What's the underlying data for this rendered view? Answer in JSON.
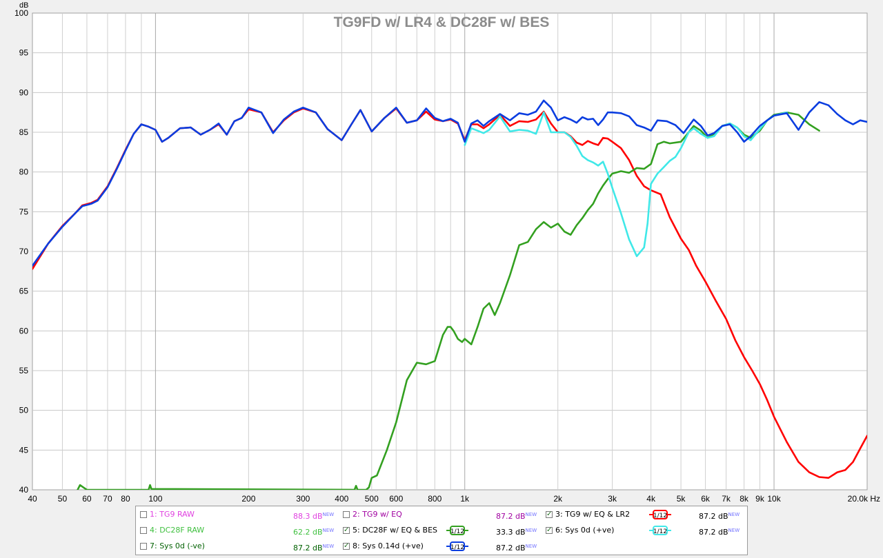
{
  "chart_data": {
    "type": "line",
    "title": "TG9FD w/ LR4 & DC28F w/ BES",
    "ylabel": "dB",
    "xlabel": "Hz",
    "x_scale": "log",
    "xlim": [
      40,
      20000
    ],
    "ylim": [
      40,
      100
    ],
    "grid": true,
    "y_ticks": [
      40,
      45,
      50,
      55,
      60,
      65,
      70,
      75,
      80,
      85,
      90,
      95,
      100
    ],
    "x_tick_labels": [
      "40",
      "50",
      "60",
      "70",
      "80",
      "100",
      "200",
      "300",
      "400",
      "500",
      "600",
      "800",
      "1k",
      "2k",
      "3k",
      "4k",
      "5k",
      "6k",
      "7k",
      "8k",
      "9k",
      "10k",
      "20.0k Hz"
    ],
    "series": [
      {
        "name": "3: TG9 w/ EQ & LR2",
        "color": "#ff0000",
        "x": [
          40,
          45,
          50,
          55,
          58,
          62,
          65,
          70,
          75,
          80,
          85,
          90,
          95,
          100,
          105,
          110,
          120,
          130,
          140,
          150,
          160,
          170,
          180,
          190,
          200,
          220,
          240,
          260,
          280,
          300,
          330,
          360,
          400,
          430,
          460,
          500,
          550,
          600,
          650,
          700,
          750,
          800,
          850,
          900,
          950,
          1000,
          1050,
          1100,
          1150,
          1200,
          1300,
          1400,
          1500,
          1600,
          1700,
          1800,
          1900,
          2000,
          2100,
          2200,
          2300,
          2400,
          2500,
          2600,
          2700,
          2800,
          2900,
          3000,
          3200,
          3400,
          3600,
          3800,
          4000,
          4300,
          4600,
          5000,
          5300,
          5600,
          6000,
          6500,
          7000,
          7500,
          8000,
          8500,
          9000,
          9500,
          10000,
          11000,
          12000,
          13000,
          14000,
          15000,
          16000,
          17000,
          18000,
          19000,
          20000
        ],
        "y": [
          67.8,
          71,
          73.2,
          74.8,
          75.8,
          76.1,
          76.5,
          78.2,
          80.5,
          82.8,
          84.8,
          86,
          85.7,
          85.3,
          83.8,
          84.3,
          85.5,
          85.6,
          84.7,
          85.3,
          86,
          84.7,
          86.4,
          86.8,
          87.9,
          87.5,
          85,
          86.5,
          87.5,
          88,
          87.5,
          85.4,
          84,
          86,
          87.8,
          85.1,
          86.8,
          88,
          86.2,
          86.5,
          87.6,
          86.6,
          86.4,
          86.6,
          86.1,
          84,
          86,
          86,
          85.5,
          86,
          87.2,
          85.8,
          86.4,
          86.3,
          86.6,
          87.6,
          86.1,
          85,
          85,
          84.5,
          83.7,
          83.4,
          83.9,
          83.6,
          83.4,
          84.3,
          84.2,
          83.8,
          83,
          81.5,
          79.5,
          78.2,
          77.7,
          77.2,
          74.3,
          71.6,
          70.2,
          68.2,
          66.2,
          63.7,
          61.5,
          58.8,
          56.7,
          55,
          53.3,
          51.3,
          49.2,
          46,
          43.5,
          42.2,
          41.6,
          41.5,
          42.2,
          42.5,
          43.5,
          45.2,
          46.8
        ]
      },
      {
        "name": "5: DC28F w/ EQ & BES",
        "color": "#33a020",
        "x": [
          56,
          57,
          58,
          60,
          95,
          96,
          97,
          440,
          445,
          450,
          480,
          490,
          500,
          520,
          560,
          600,
          650,
          700,
          750,
          800,
          850,
          880,
          900,
          920,
          950,
          980,
          1000,
          1050,
          1100,
          1150,
          1200,
          1250,
          1300,
          1400,
          1500,
          1600,
          1700,
          1800,
          1900,
          2000,
          2100,
          2200,
          2300,
          2400,
          2500,
          2600,
          2700,
          2800,
          2900,
          3000,
          3200,
          3400,
          3600,
          3800,
          4000,
          4200,
          4400,
          4600,
          5000,
          5300,
          5500,
          5800,
          6100,
          6400,
          6800,
          7200,
          7600,
          8000,
          8400,
          9000,
          9500,
          10000,
          11000,
          12000,
          13000,
          14000
        ],
        "y": [
          40,
          40.6,
          40.4,
          40,
          40,
          40.6,
          40.1,
          40,
          40.5,
          40,
          40,
          40.3,
          41.5,
          41.8,
          45,
          48.5,
          53.8,
          56,
          55.8,
          56.2,
          59.5,
          60.5,
          60.5,
          60,
          59,
          58.6,
          59,
          58.3,
          60.5,
          62.8,
          63.5,
          62,
          63.5,
          67,
          70.8,
          71.2,
          72.8,
          73.7,
          73,
          73.5,
          72.5,
          72.1,
          73.3,
          74.2,
          75.2,
          76,
          77.3,
          78.3,
          79.1,
          79.8,
          80.1,
          79.9,
          80.5,
          80.4,
          81,
          83.5,
          83.8,
          83.6,
          83.8,
          85,
          85.8,
          85.2,
          84.3,
          84.8,
          85.8,
          86.1,
          85.6,
          84.7,
          84.3,
          85.2,
          86.5,
          87.2,
          87.5,
          87.2,
          86,
          85.2
        ]
      },
      {
        "name": "6: Sys 0d (+ve)",
        "color": "#40e8e8",
        "x": [
          1000,
          1050,
          1100,
          1150,
          1200,
          1300,
          1400,
          1500,
          1600,
          1700,
          1800,
          1900,
          2000,
          2100,
          2200,
          2300,
          2400,
          2500,
          2600,
          2700,
          2800,
          2900,
          3000,
          3200,
          3400,
          3600,
          3800,
          3900,
          4000,
          4200,
          4400,
          4600,
          4800,
          5000,
          5300,
          5500,
          5800,
          6100,
          6400,
          6800,
          7200,
          7600,
          8000,
          8400,
          9000,
          9500,
          10000,
          11000
        ],
        "y": [
          83.4,
          85.5,
          85.2,
          84.9,
          85.3,
          87,
          85.1,
          85.3,
          85.2,
          84.8,
          87.5,
          85,
          85,
          85,
          84.4,
          83.3,
          82,
          81.5,
          81.2,
          80.8,
          81.3,
          79.8,
          78,
          74.8,
          71.5,
          69.4,
          70.5,
          73.5,
          78.5,
          79.8,
          80.6,
          81.4,
          81.9,
          83,
          85,
          85.5,
          84.8,
          84.3,
          84.5,
          85.8,
          86.1,
          85.6,
          84.5,
          84,
          85.4,
          86.5,
          87.1,
          87.5
        ]
      },
      {
        "name": "8: Sys 0.14d (+ve)",
        "color": "#0a3de0",
        "x": [
          40,
          45,
          50,
          55,
          58,
          62,
          65,
          70,
          75,
          80,
          85,
          90,
          95,
          100,
          105,
          110,
          120,
          130,
          140,
          150,
          160,
          170,
          180,
          190,
          200,
          220,
          240,
          260,
          280,
          300,
          330,
          360,
          400,
          430,
          460,
          500,
          550,
          600,
          650,
          700,
          750,
          800,
          850,
          900,
          950,
          1000,
          1050,
          1100,
          1150,
          1200,
          1300,
          1400,
          1500,
          1600,
          1700,
          1800,
          1900,
          2000,
          2100,
          2200,
          2300,
          2400,
          2500,
          2600,
          2700,
          2800,
          2900,
          3000,
          3200,
          3400,
          3600,
          3800,
          4000,
          4200,
          4500,
          4800,
          5100,
          5500,
          5800,
          6100,
          6400,
          6800,
          7200,
          7600,
          8000,
          8400,
          9000,
          9500,
          10000,
          11000,
          12000,
          13000,
          14000,
          15000,
          16000,
          17000,
          18000,
          19000,
          20000
        ],
        "y": [
          68.2,
          71,
          73.1,
          74.8,
          75.7,
          76,
          76.4,
          78.1,
          80.4,
          82.7,
          84.8,
          86,
          85.7,
          85.3,
          83.8,
          84.3,
          85.5,
          85.6,
          84.7,
          85.3,
          86.1,
          84.7,
          86.4,
          86.8,
          88.1,
          87.5,
          84.9,
          86.6,
          87.6,
          88.1,
          87.5,
          85.4,
          84,
          86,
          87.8,
          85.1,
          86.8,
          88.1,
          86.2,
          86.5,
          88,
          86.8,
          86.4,
          86.7,
          86.2,
          83.8,
          86.1,
          86.5,
          85.8,
          86.4,
          87.3,
          86.5,
          87.4,
          87.2,
          87.6,
          89,
          88.1,
          86.5,
          86.9,
          86.6,
          86.2,
          86.9,
          86.6,
          86.7,
          85.9,
          86.6,
          87.5,
          87.5,
          87.4,
          87,
          85.9,
          85.6,
          85.2,
          86.5,
          86.4,
          85.9,
          84.9,
          86.6,
          85.8,
          84.6,
          84.9,
          85.8,
          86,
          85,
          83.8,
          84.5,
          85.8,
          86.5,
          87.1,
          87.4,
          85.3,
          87.5,
          88.8,
          88.4,
          87.3,
          86.5,
          86,
          86.5,
          86.3
        ]
      }
    ]
  },
  "legend": {
    "items": [
      {
        "label": "1: TG9 RAW",
        "value": "88.3 dB",
        "badge": "NEW",
        "checked": false,
        "color": "#e040e0",
        "smoothing": ""
      },
      {
        "label": "2: TG9 w/ EQ",
        "value": "87.2 dB",
        "badge": "NEW",
        "checked": false,
        "color": "#a000a0",
        "smoothing": ""
      },
      {
        "label": "3: TG9 w/ EQ & LR2",
        "value": "87.2 dB",
        "badge": "NEW",
        "checked": true,
        "color": "#e00000",
        "smoothing": "1/12"
      },
      {
        "label": "4: DC28F RAW",
        "value": "62.2 dB",
        "badge": "NEW",
        "checked": false,
        "color": "#40c040",
        "smoothing": ""
      },
      {
        "label": "5: DC28F w/ EQ & BES",
        "value": "33.3 dB",
        "badge": "NEW",
        "checked": true,
        "color": "#008000",
        "smoothing": "1/12"
      },
      {
        "label": "6: Sys 0d (+ve)",
        "value": "87.2 dB",
        "badge": "NEW",
        "checked": true,
        "color": "#20d0d0",
        "smoothing": "1/12"
      },
      {
        "label": "7: Sys 0d (-ve)",
        "value": "87.2 dB",
        "badge": "NEW",
        "checked": false,
        "color": "#006000",
        "smoothing": ""
      },
      {
        "label": "8: Sys 0.14d (+ve)",
        "value": "87.2 dB",
        "badge": "NEW",
        "checked": true,
        "color": "#0020c0",
        "smoothing": "1/12"
      }
    ]
  }
}
